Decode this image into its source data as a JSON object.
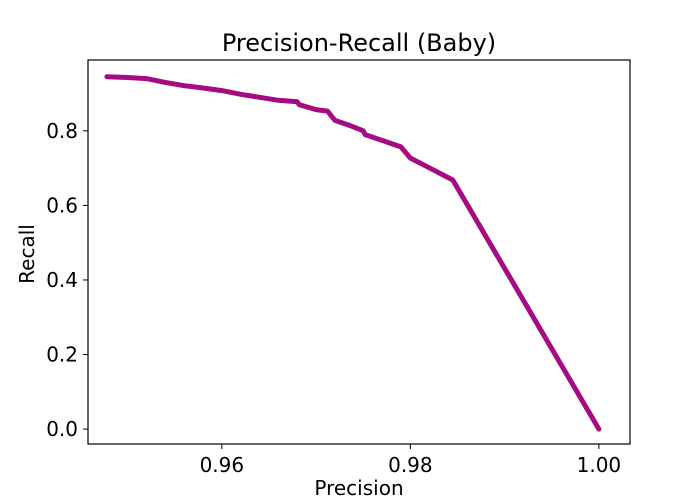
{
  "chart_data": {
    "type": "line",
    "title": "Precision-Recall (Baby)",
    "xlabel": "Precision",
    "ylabel": "Recall",
    "xlim": [
      0.9458,
      1.0033
    ],
    "ylim": [
      -0.04,
      0.99
    ],
    "xticks": [
      0.96,
      0.98,
      1.0
    ],
    "xtick_labels": [
      "0.96",
      "0.98",
      "1.00"
    ],
    "yticks": [
      0.0,
      0.2,
      0.4,
      0.6,
      0.8
    ],
    "ytick_labels": [
      "0.0",
      "0.2",
      "0.4",
      "0.6",
      "0.8"
    ],
    "grid": false,
    "series": [
      {
        "color": "#a50c84",
        "x": [
          0.9478,
          0.95,
          0.952,
          0.954,
          0.956,
          0.958,
          0.96,
          0.962,
          0.964,
          0.966,
          0.968,
          0.9682,
          0.97,
          0.9712,
          0.972,
          0.9735,
          0.975,
          0.9752,
          0.9775,
          0.979,
          0.98,
          0.9817,
          0.9845,
          1.0
        ],
        "y": [
          0.945,
          0.943,
          0.94,
          0.93,
          0.921,
          0.915,
          0.908,
          0.898,
          0.89,
          0.882,
          0.878,
          0.87,
          0.857,
          0.853,
          0.828,
          0.815,
          0.8,
          0.79,
          0.77,
          0.757,
          0.727,
          0.705,
          0.668,
          0.0
        ]
      }
    ]
  }
}
